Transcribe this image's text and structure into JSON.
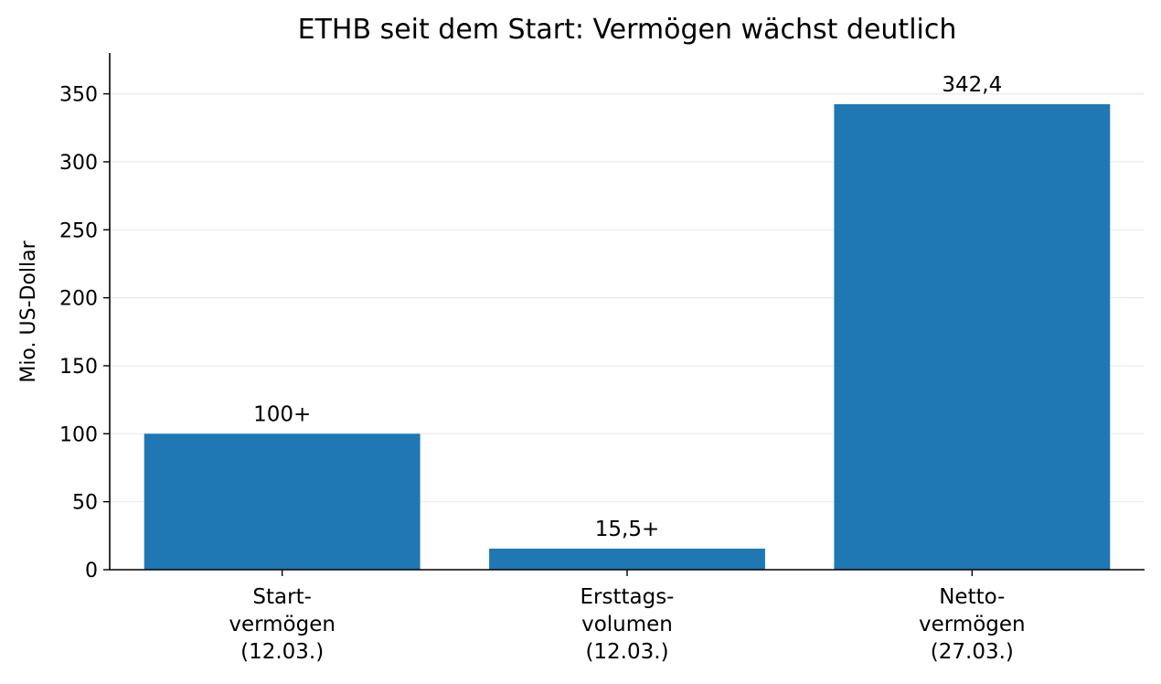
{
  "chart_data": {
    "type": "bar",
    "title": "ETHB seit dem Start: Vermögen wächst deutlich",
    "ylabel": "Mio. US-Dollar",
    "xlabel": "",
    "ylim": [
      0,
      380
    ],
    "yticks": [
      0,
      50,
      100,
      150,
      200,
      250,
      300,
      350
    ],
    "grid": "horizontal",
    "categories": [
      [
        "Start-",
        "vermögen",
        "(12.03.)"
      ],
      [
        "Ersttags-",
        "volumen",
        "(12.03.)"
      ],
      [
        "Netto-",
        "vermögen",
        "(27.03.)"
      ]
    ],
    "values": [
      100,
      15.5,
      342.4
    ],
    "data_labels": [
      "100+",
      "15,5+",
      "342,4"
    ],
    "bar_color": "#1f77b4",
    "grid_color": "#ebebeb",
    "axis_color": "#000000"
  }
}
